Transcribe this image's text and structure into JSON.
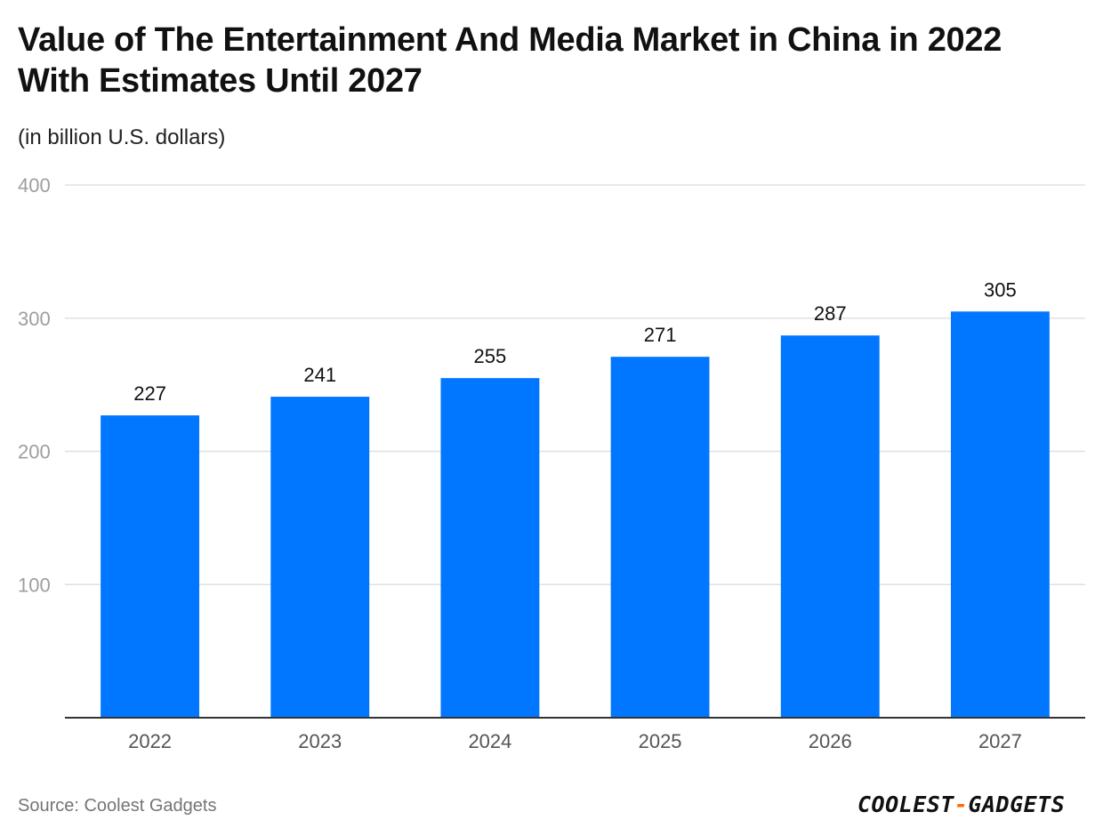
{
  "header": {
    "title": "Value of The Entertainment And Media Market in China in 2022 With Estimates Until 2027",
    "subtitle": "(in billion U.S. dollars)"
  },
  "footer": {
    "source": "Source: Coolest Gadgets",
    "brand_part1": "COOLEST",
    "brand_sep": "-",
    "brand_part2": "GADGETS"
  },
  "colors": {
    "bar": "#0177ff",
    "gridline": "#e0e0e0",
    "axis": "#333333",
    "brand_accent": "#ff6a00"
  },
  "chart_data": {
    "type": "bar",
    "title": "Value of The Entertainment And Media Market in China in 2022 With Estimates Until 2027",
    "subtitle": "(in billion U.S. dollars)",
    "xlabel": "",
    "ylabel": "",
    "categories": [
      "2022",
      "2023",
      "2024",
      "2025",
      "2026",
      "2027"
    ],
    "values": [
      227,
      241,
      255,
      271,
      287,
      305
    ],
    "ylim": [
      0,
      400
    ],
    "yticks": [
      100,
      200,
      300,
      400
    ],
    "grid": true,
    "legend": "none"
  }
}
